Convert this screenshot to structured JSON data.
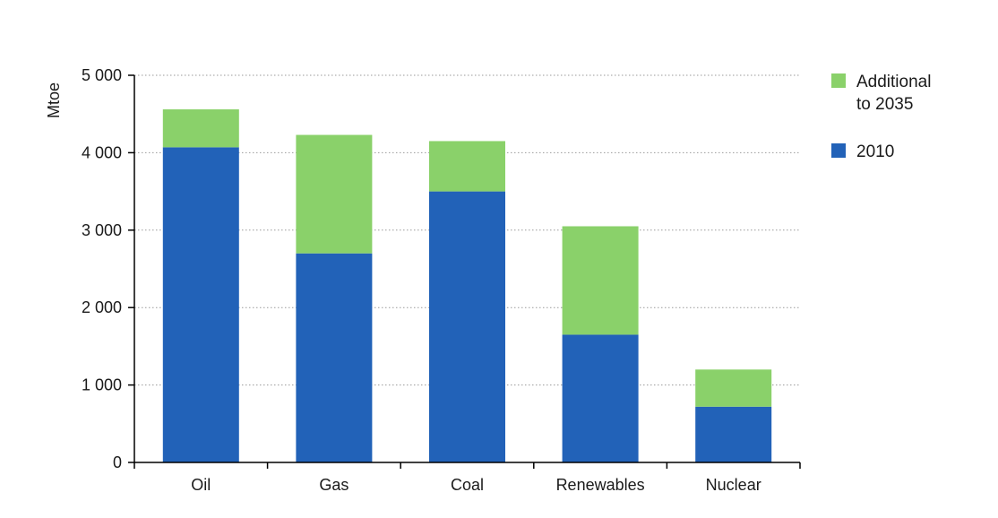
{
  "chart_data": {
    "type": "bar",
    "stacked": true,
    "ylabel": "Mtoe",
    "xlabel": "",
    "ylim": [
      0,
      5000
    ],
    "yticks": [
      0,
      1000,
      2000,
      3000,
      4000,
      5000
    ],
    "ytick_labels": [
      "0",
      "1 000",
      "2 000",
      "3 000",
      "4 000",
      "5 000"
    ],
    "grid": "horizontal-dotted",
    "legend_position": "top-right",
    "categories": [
      "Oil",
      "Gas",
      "Coal",
      "Renewables",
      "Nuclear"
    ],
    "series": [
      {
        "name": "2010",
        "color": "#2262b8",
        "values": [
          4070,
          2700,
          3500,
          1650,
          720
        ]
      },
      {
        "name": "Additional to 2035",
        "color": "#8ad16a",
        "values": [
          490,
          1530,
          650,
          1400,
          480
        ]
      }
    ],
    "legend": [
      {
        "lines": [
          "Additional",
          "to 2035"
        ],
        "color": "#8ad16a"
      },
      {
        "lines": [
          "2010"
        ],
        "color": "#2262b8"
      }
    ]
  }
}
